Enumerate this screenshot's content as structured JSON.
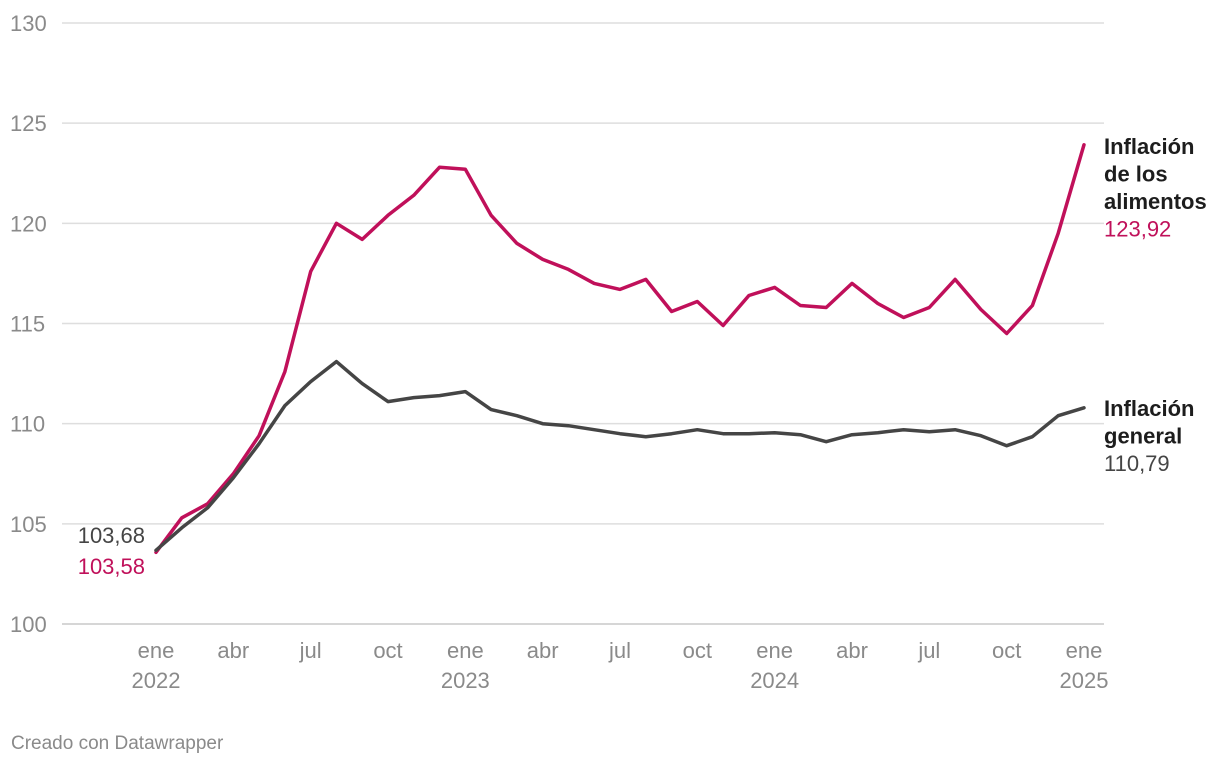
{
  "chart_data": {
    "type": "line",
    "ylim": [
      100,
      130
    ],
    "yticks": [
      100,
      105,
      110,
      115,
      120,
      125,
      130
    ],
    "grid": true,
    "x_axis_ticks": [
      {
        "month": "ene",
        "year": "2022",
        "index": 0
      },
      {
        "month": "abr",
        "year": "",
        "index": 3
      },
      {
        "month": "jul",
        "year": "",
        "index": 6
      },
      {
        "month": "oct",
        "year": "",
        "index": 9
      },
      {
        "month": "ene",
        "year": "2023",
        "index": 12
      },
      {
        "month": "abr",
        "year": "",
        "index": 15
      },
      {
        "month": "jul",
        "year": "",
        "index": 18
      },
      {
        "month": "oct",
        "year": "",
        "index": 21
      },
      {
        "month": "ene",
        "year": "2024",
        "index": 24
      },
      {
        "month": "abr",
        "year": "",
        "index": 27
      },
      {
        "month": "jul",
        "year": "",
        "index": 30
      },
      {
        "month": "oct",
        "year": "",
        "index": 33
      },
      {
        "month": "ene",
        "year": "2025",
        "index": 36
      }
    ],
    "x": [
      "2022-01",
      "2022-02",
      "2022-03",
      "2022-04",
      "2022-05",
      "2022-06",
      "2022-07",
      "2022-08",
      "2022-09",
      "2022-10",
      "2022-11",
      "2022-12",
      "2023-01",
      "2023-02",
      "2023-03",
      "2023-04",
      "2023-05",
      "2023-06",
      "2023-07",
      "2023-08",
      "2023-09",
      "2023-10",
      "2023-11",
      "2023-12",
      "2024-01",
      "2024-02",
      "2024-03",
      "2024-04",
      "2024-05",
      "2024-06",
      "2024-07",
      "2024-08",
      "2024-09",
      "2024-10",
      "2024-11",
      "2024-12",
      "2025-01"
    ],
    "series": [
      {
        "name_lines": [
          "Inflación",
          "de los",
          "alimentos"
        ],
        "color": "#c0105a",
        "start_label": "103,58",
        "end_label": "123,92",
        "values": [
          103.58,
          105.3,
          106.0,
          107.5,
          109.4,
          112.6,
          117.6,
          120.0,
          119.2,
          120.4,
          121.4,
          122.8,
          122.7,
          120.4,
          119.0,
          118.2,
          117.7,
          117.0,
          116.7,
          117.2,
          115.6,
          116.1,
          114.9,
          116.4,
          116.8,
          115.9,
          115.8,
          117.0,
          116.0,
          115.3,
          115.8,
          117.2,
          115.7,
          114.5,
          115.9,
          119.5,
          123.92
        ]
      },
      {
        "name_lines": [
          "Inflación",
          "general"
        ],
        "color": "#454545",
        "start_label": "103,68",
        "end_label": "110,79",
        "values": [
          103.68,
          104.8,
          105.8,
          107.3,
          109.0,
          110.9,
          112.1,
          113.1,
          112.0,
          111.1,
          111.3,
          111.4,
          111.6,
          110.7,
          110.4,
          110.0,
          109.9,
          109.7,
          109.5,
          109.35,
          109.5,
          109.7,
          109.5,
          109.5,
          109.55,
          109.45,
          109.1,
          109.45,
          109.55,
          109.7,
          109.6,
          109.7,
          109.4,
          108.9,
          109.35,
          110.4,
          110.79
        ]
      }
    ]
  },
  "credit": "Creado con Datawrapper"
}
